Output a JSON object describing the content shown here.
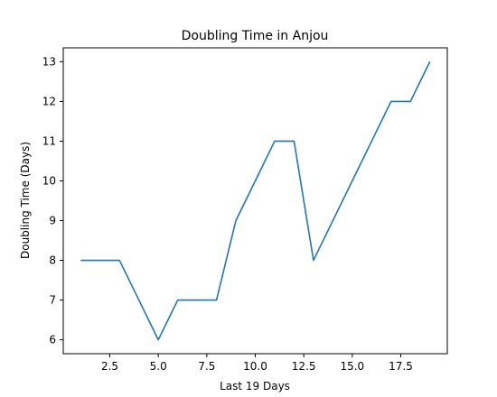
{
  "chart_data": {
    "type": "line",
    "title": "Doubling Time in  Anjou",
    "xlabel": "Last 19 Days",
    "ylabel": "Doubling Time (Days)",
    "xlim": [
      0.1,
      19.9
    ],
    "ylim": [
      5.65,
      13.35
    ],
    "x_ticks": [
      2.5,
      5.0,
      7.5,
      10.0,
      12.5,
      15.0,
      17.5
    ],
    "x_tick_labels": [
      "2.5",
      "5.0",
      "7.5",
      "10.0",
      "12.5",
      "15.0",
      "17.5"
    ],
    "y_ticks": [
      6,
      7,
      8,
      9,
      10,
      11,
      12,
      13
    ],
    "y_tick_labels": [
      "6",
      "7",
      "8",
      "9",
      "10",
      "11",
      "12",
      "13"
    ],
    "grid": false,
    "series": [
      {
        "color": "#1f77b4",
        "x": [
          1,
          2,
          3,
          4,
          5,
          6,
          7,
          8,
          9,
          10,
          11,
          12,
          13,
          14,
          15,
          16,
          17,
          18,
          19
        ],
        "y": [
          8,
          8,
          8,
          7,
          6,
          7,
          7,
          7,
          9,
          10,
          11,
          11,
          8,
          9,
          10,
          11,
          12,
          12,
          13
        ]
      }
    ]
  }
}
